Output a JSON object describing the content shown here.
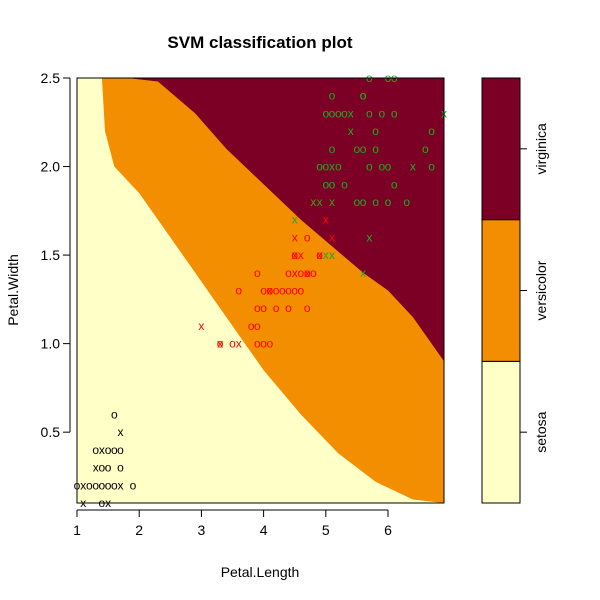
{
  "chart_data": {
    "type": "scatter",
    "title": "SVM classification plot",
    "xlabel": "Petal.Length",
    "ylabel": "Petal.Width",
    "xlim": [
      1.0,
      6.9
    ],
    "ylim": [
      0.1,
      2.5
    ],
    "x_ticks": [
      "1",
      "2",
      "3",
      "4",
      "5",
      "6"
    ],
    "y_ticks": [
      "0.5",
      "1.0",
      "1.5",
      "2.0",
      "2.5"
    ],
    "classes": [
      "setosa",
      "versicolor",
      "virginica"
    ],
    "region_colors": {
      "setosa": "#FFFFC8",
      "versicolor": "#F28E00",
      "virginica": "#7C0025"
    },
    "boundaries": {
      "setosa_versicolor": [
        [
          1.4,
          2.5
        ],
        [
          1.45,
          2.2
        ],
        [
          1.6,
          2.0
        ],
        [
          2.0,
          1.85
        ],
        [
          2.4,
          1.65
        ],
        [
          2.8,
          1.45
        ],
        [
          3.4,
          1.15
        ],
        [
          4.0,
          0.85
        ],
        [
          4.6,
          0.6
        ],
        [
          5.2,
          0.38
        ],
        [
          5.8,
          0.22
        ],
        [
          6.4,
          0.12
        ],
        [
          6.9,
          0.1
        ]
      ],
      "versicolor_virginica": [
        [
          1.8,
          2.5
        ],
        [
          2.3,
          2.48
        ],
        [
          2.9,
          2.3
        ],
        [
          3.4,
          2.1
        ],
        [
          4.0,
          1.9
        ],
        [
          4.6,
          1.7
        ],
        [
          5.1,
          1.55
        ],
        [
          5.6,
          1.4
        ],
        [
          6.0,
          1.3
        ],
        [
          6.4,
          1.15
        ],
        [
          6.9,
          0.9
        ]
      ]
    },
    "series": [
      {
        "name": "setosa",
        "color": "#000000",
        "points": [
          {
            "x": 1.6,
            "y": 0.6,
            "m": "o"
          },
          {
            "x": 1.7,
            "y": 0.5,
            "m": "x"
          },
          {
            "x": 1.3,
            "y": 0.4,
            "m": "o"
          },
          {
            "x": 1.4,
            "y": 0.4,
            "m": "x"
          },
          {
            "x": 1.5,
            "y": 0.4,
            "m": "o"
          },
          {
            "x": 1.6,
            "y": 0.4,
            "m": "o"
          },
          {
            "x": 1.7,
            "y": 0.4,
            "m": "o"
          },
          {
            "x": 1.3,
            "y": 0.3,
            "m": "x"
          },
          {
            "x": 1.4,
            "y": 0.3,
            "m": "o"
          },
          {
            "x": 1.5,
            "y": 0.3,
            "m": "o"
          },
          {
            "x": 1.7,
            "y": 0.3,
            "m": "o"
          },
          {
            "x": 1.1,
            "y": 0.2,
            "m": "x"
          },
          {
            "x": 1.2,
            "y": 0.2,
            "m": "o"
          },
          {
            "x": 1.3,
            "y": 0.2,
            "m": "o"
          },
          {
            "x": 1.4,
            "y": 0.2,
            "m": "o"
          },
          {
            "x": 1.5,
            "y": 0.2,
            "m": "o"
          },
          {
            "x": 1.6,
            "y": 0.2,
            "m": "o"
          },
          {
            "x": 1.7,
            "y": 0.2,
            "m": "x"
          },
          {
            "x": 1.9,
            "y": 0.2,
            "m": "o"
          },
          {
            "x": 1.0,
            "y": 0.2,
            "m": "o"
          },
          {
            "x": 1.1,
            "y": 0.1,
            "m": "x"
          },
          {
            "x": 1.4,
            "y": 0.1,
            "m": "o"
          },
          {
            "x": 1.5,
            "y": 0.1,
            "m": "x"
          }
        ]
      },
      {
        "name": "versicolor",
        "color": "#FF0000",
        "points": [
          {
            "x": 3.0,
            "y": 1.1,
            "m": "x"
          },
          {
            "x": 3.3,
            "y": 1.0,
            "m": "x"
          },
          {
            "x": 3.3,
            "y": 1.0,
            "m": "o"
          },
          {
            "x": 3.5,
            "y": 1.0,
            "m": "o"
          },
          {
            "x": 3.6,
            "y": 1.0,
            "m": "x"
          },
          {
            "x": 3.9,
            "y": 1.0,
            "m": "o"
          },
          {
            "x": 4.0,
            "y": 1.0,
            "m": "o"
          },
          {
            "x": 4.1,
            "y": 1.0,
            "m": "o"
          },
          {
            "x": 3.8,
            "y": 1.1,
            "m": "o"
          },
          {
            "x": 3.9,
            "y": 1.1,
            "m": "o"
          },
          {
            "x": 3.9,
            "y": 1.2,
            "m": "o"
          },
          {
            "x": 4.0,
            "y": 1.2,
            "m": "o"
          },
          {
            "x": 4.2,
            "y": 1.2,
            "m": "o"
          },
          {
            "x": 4.4,
            "y": 1.2,
            "m": "o"
          },
          {
            "x": 4.7,
            "y": 1.2,
            "m": "o"
          },
          {
            "x": 3.6,
            "y": 1.3,
            "m": "o"
          },
          {
            "x": 4.0,
            "y": 1.3,
            "m": "o"
          },
          {
            "x": 4.1,
            "y": 1.3,
            "m": "o"
          },
          {
            "x": 4.2,
            "y": 1.3,
            "m": "o"
          },
          {
            "x": 4.3,
            "y": 1.3,
            "m": "o"
          },
          {
            "x": 4.4,
            "y": 1.3,
            "m": "o"
          },
          {
            "x": 4.5,
            "y": 1.3,
            "m": "o"
          },
          {
            "x": 4.6,
            "y": 1.3,
            "m": "o"
          },
          {
            "x": 4.1,
            "y": 1.3,
            "m": "x"
          },
          {
            "x": 3.9,
            "y": 1.4,
            "m": "o"
          },
          {
            "x": 4.4,
            "y": 1.4,
            "m": "o"
          },
          {
            "x": 4.6,
            "y": 1.4,
            "m": "o"
          },
          {
            "x": 4.7,
            "y": 1.4,
            "m": "o"
          },
          {
            "x": 4.8,
            "y": 1.4,
            "m": "o"
          },
          {
            "x": 4.5,
            "y": 1.4,
            "m": "x"
          },
          {
            "x": 4.7,
            "y": 1.4,
            "m": "x"
          },
          {
            "x": 4.5,
            "y": 1.5,
            "m": "o"
          },
          {
            "x": 4.6,
            "y": 1.5,
            "m": "x"
          },
          {
            "x": 4.9,
            "y": 1.5,
            "m": "o"
          },
          {
            "x": 4.5,
            "y": 1.5,
            "m": "x"
          },
          {
            "x": 4.7,
            "y": 1.6,
            "m": "o"
          },
          {
            "x": 4.5,
            "y": 1.6,
            "m": "x"
          },
          {
            "x": 4.8,
            "y": 1.8,
            "m": "x"
          },
          {
            "x": 5.0,
            "y": 1.7,
            "m": "x"
          },
          {
            "x": 5.1,
            "y": 1.6,
            "m": "x"
          },
          {
            "x": 4.9,
            "y": 1.5,
            "m": "x"
          }
        ]
      },
      {
        "name": "virginica",
        "color": "#22A822",
        "points": [
          {
            "x": 5.7,
            "y": 2.5,
            "m": "o"
          },
          {
            "x": 6.0,
            "y": 2.5,
            "m": "o"
          },
          {
            "x": 6.1,
            "y": 2.5,
            "m": "o"
          },
          {
            "x": 5.1,
            "y": 2.4,
            "m": "o"
          },
          {
            "x": 5.6,
            "y": 2.4,
            "m": "o"
          },
          {
            "x": 5.6,
            "y": 2.4,
            "m": "o"
          },
          {
            "x": 6.9,
            "y": 2.3,
            "m": "x"
          },
          {
            "x": 5.0,
            "y": 2.3,
            "m": "o"
          },
          {
            "x": 5.1,
            "y": 2.3,
            "m": "o"
          },
          {
            "x": 5.2,
            "y": 2.3,
            "m": "o"
          },
          {
            "x": 5.3,
            "y": 2.3,
            "m": "o"
          },
          {
            "x": 5.4,
            "y": 2.3,
            "m": "x"
          },
          {
            "x": 5.7,
            "y": 2.3,
            "m": "o"
          },
          {
            "x": 5.9,
            "y": 2.3,
            "m": "o"
          },
          {
            "x": 6.1,
            "y": 2.3,
            "m": "o"
          },
          {
            "x": 5.4,
            "y": 2.2,
            "m": "x"
          },
          {
            "x": 5.8,
            "y": 2.2,
            "m": "o"
          },
          {
            "x": 6.7,
            "y": 2.2,
            "m": "o"
          },
          {
            "x": 5.1,
            "y": 2.1,
            "m": "o"
          },
          {
            "x": 5.5,
            "y": 2.1,
            "m": "o"
          },
          {
            "x": 5.6,
            "y": 2.1,
            "m": "o"
          },
          {
            "x": 5.8,
            "y": 2.1,
            "m": "o"
          },
          {
            "x": 6.6,
            "y": 2.1,
            "m": "o"
          },
          {
            "x": 4.9,
            "y": 2.0,
            "m": "o"
          },
          {
            "x": 5.0,
            "y": 2.0,
            "m": "o"
          },
          {
            "x": 5.1,
            "y": 2.0,
            "m": "x"
          },
          {
            "x": 5.2,
            "y": 2.0,
            "m": "o"
          },
          {
            "x": 5.7,
            "y": 2.0,
            "m": "o"
          },
          {
            "x": 5.9,
            "y": 2.0,
            "m": "o"
          },
          {
            "x": 6.0,
            "y": 2.0,
            "m": "o"
          },
          {
            "x": 6.4,
            "y": 2.0,
            "m": "x"
          },
          {
            "x": 6.7,
            "y": 2.0,
            "m": "o"
          },
          {
            "x": 5.0,
            "y": 1.9,
            "m": "o"
          },
          {
            "x": 5.1,
            "y": 1.9,
            "m": "o"
          },
          {
            "x": 5.3,
            "y": 1.9,
            "m": "o"
          },
          {
            "x": 6.1,
            "y": 1.9,
            "m": "o"
          },
          {
            "x": 4.8,
            "y": 1.8,
            "m": "x"
          },
          {
            "x": 4.9,
            "y": 1.8,
            "m": "x"
          },
          {
            "x": 5.1,
            "y": 1.8,
            "m": "x"
          },
          {
            "x": 5.5,
            "y": 1.8,
            "m": "o"
          },
          {
            "x": 5.6,
            "y": 1.8,
            "m": "o"
          },
          {
            "x": 5.8,
            "y": 1.8,
            "m": "o"
          },
          {
            "x": 6.0,
            "y": 1.8,
            "m": "o"
          },
          {
            "x": 6.3,
            "y": 1.8,
            "m": "o"
          },
          {
            "x": 4.5,
            "y": 1.7,
            "m": "x"
          },
          {
            "x": 5.7,
            "y": 1.6,
            "m": "x"
          },
          {
            "x": 5.0,
            "y": 1.5,
            "m": "x"
          },
          {
            "x": 5.1,
            "y": 1.5,
            "m": "x"
          },
          {
            "x": 5.6,
            "y": 1.4,
            "m": "x"
          }
        ]
      }
    ]
  }
}
